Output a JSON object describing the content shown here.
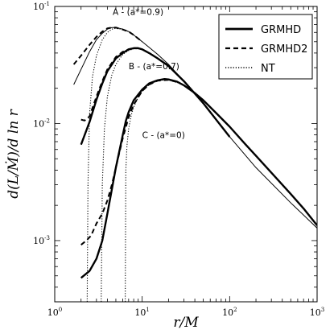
{
  "chart_data": {
    "type": "line",
    "xlabel": "r/M",
    "ylabel": "d(L/Ṁ)/d ln r",
    "x_scale": "log",
    "y_scale": "log",
    "xlim": [
      1,
      1000
    ],
    "ylim": [
      0.0003,
      0.1
    ],
    "x_ticks": [
      {
        "value": 1,
        "label": "10",
        "exp": "0"
      },
      {
        "value": 10,
        "label": "10",
        "exp": "1"
      },
      {
        "value": 100,
        "label": "10",
        "exp": "2"
      },
      {
        "value": 1000,
        "label": "10",
        "exp": "3"
      }
    ],
    "y_ticks": [
      {
        "value": 0.001,
        "label": "10",
        "exp": "-3"
      },
      {
        "value": 0.01,
        "label": "10",
        "exp": "-2"
      },
      {
        "value": 0.1,
        "label": "10",
        "exp": "-1"
      }
    ],
    "grid": false,
    "legend": {
      "position": "top-right",
      "entries": [
        {
          "name": "GRMHD",
          "style": "solid-thick"
        },
        {
          "name": "GRMHD2",
          "style": "dashed"
        },
        {
          "name": "NT",
          "style": "dotted"
        }
      ]
    },
    "annotations": [
      {
        "text": "A - (a*=0.9)",
        "x": 4.6,
        "y": 0.085
      },
      {
        "text": "B - (a*=0.7)",
        "x": 7.0,
        "y": 0.029
      },
      {
        "text": "C - (a*=0)",
        "x": 10.0,
        "y": 0.0075
      }
    ],
    "series": [
      {
        "group": "A",
        "style": "solid-thin",
        "x": [
          1.65,
          2.0,
          2.5,
          3.0,
          3.5,
          4.0,
          4.5,
          5.0,
          5.5,
          6.0,
          7.0,
          8.0,
          10,
          15,
          20,
          30,
          50,
          100,
          200,
          500,
          1000
        ],
        "y": [
          0.0215,
          0.029,
          0.041,
          0.052,
          0.059,
          0.064,
          0.066,
          0.066,
          0.065,
          0.064,
          0.061,
          0.057,
          0.05,
          0.039,
          0.032,
          0.023,
          0.0148,
          0.0077,
          0.0042,
          0.0021,
          0.00128
        ]
      },
      {
        "group": "A",
        "style": "dashed",
        "x": [
          1.65,
          2.0,
          2.5,
          3.0,
          3.5,
          4.0,
          4.5,
          5.0,
          6.0,
          7.0,
          8.0,
          10
        ],
        "y": [
          0.032,
          0.038,
          0.047,
          0.055,
          0.061,
          0.065,
          0.066,
          0.066,
          0.0635,
          0.061,
          0.057,
          0.05
        ]
      },
      {
        "group": "A",
        "style": "dotted",
        "x": [
          2.35,
          2.4,
          2.5,
          2.7,
          3.0,
          3.5,
          4.0,
          4.5,
          5.0,
          6.0,
          7.0,
          8.0,
          10
        ],
        "y": [
          0.0003,
          0.003,
          0.012,
          0.025,
          0.038,
          0.052,
          0.06,
          0.064,
          0.065,
          0.0635,
          0.061,
          0.057,
          0.05
        ]
      },
      {
        "group": "B",
        "style": "solid-thick",
        "x": [
          2.0,
          2.5,
          3.0,
          3.5,
          4.0,
          5.0,
          6.0,
          7.0,
          8.0,
          9.0,
          10,
          12,
          15,
          20,
          30,
          50,
          100
        ],
        "y": [
          0.0066,
          0.0103,
          0.016,
          0.022,
          0.028,
          0.036,
          0.04,
          0.043,
          0.044,
          0.044,
          0.043,
          0.04,
          0.036,
          0.031,
          0.023,
          0.0149,
          0.0077
        ]
      },
      {
        "group": "B",
        "style": "dashed",
        "x": [
          2.0,
          2.2,
          2.5,
          3.0,
          3.5,
          4.0,
          5.0,
          6.0,
          7.0,
          8.0,
          9.0,
          10,
          12,
          15
        ],
        "y": [
          0.0108,
          0.0106,
          0.0115,
          0.017,
          0.023,
          0.029,
          0.037,
          0.041,
          0.043,
          0.044,
          0.044,
          0.043,
          0.04,
          0.036
        ]
      },
      {
        "group": "B",
        "style": "dotted",
        "x": [
          3.4,
          3.5,
          3.7,
          4.0,
          4.5,
          5.0,
          6.0,
          7.0,
          8.0,
          9.0,
          10,
          12,
          15
        ],
        "y": [
          0.0003,
          0.003,
          0.009,
          0.017,
          0.026,
          0.032,
          0.039,
          0.042,
          0.0435,
          0.0435,
          0.043,
          0.04,
          0.036
        ]
      },
      {
        "group": "C",
        "style": "solid-thick",
        "x": [
          2.0,
          2.5,
          3.0,
          3.5,
          4.0,
          5.0,
          6.0,
          6.5,
          7.0,
          8.0,
          10,
          12,
          15,
          18,
          20,
          25,
          30,
          40,
          50,
          70,
          100,
          150,
          200,
          300,
          500,
          700,
          1000
        ],
        "y": [
          0.00048,
          0.00055,
          0.0007,
          0.001,
          0.0017,
          0.0042,
          0.008,
          0.0105,
          0.0125,
          0.0158,
          0.0195,
          0.022,
          0.0234,
          0.024,
          0.0238,
          0.0228,
          0.0212,
          0.0182,
          0.0158,
          0.0123,
          0.0094,
          0.0067,
          0.0053,
          0.0038,
          0.0025,
          0.00188,
          0.00135
        ]
      },
      {
        "group": "C",
        "style": "dashed",
        "x": [
          2.0,
          2.3,
          2.6,
          3.0,
          3.5,
          4.0,
          4.5,
          5.0,
          6.0,
          7.0,
          8.0,
          10,
          12,
          15,
          20,
          25
        ],
        "y": [
          0.00092,
          0.001,
          0.0011,
          0.0014,
          0.0017,
          0.0022,
          0.003,
          0.0042,
          0.0075,
          0.0113,
          0.0145,
          0.019,
          0.0215,
          0.0232,
          0.0236,
          0.0226
        ]
      },
      {
        "group": "C",
        "style": "dotted",
        "x": [
          6.4,
          6.5,
          6.7,
          7.0,
          7.5,
          8.0,
          9.0,
          10,
          12,
          15,
          18,
          20,
          25,
          30
        ],
        "y": [
          0.0003,
          0.004,
          0.0065,
          0.009,
          0.0118,
          0.0138,
          0.0168,
          0.0188,
          0.0214,
          0.0232,
          0.0236,
          0.0235,
          0.0225,
          0.021
        ]
      }
    ]
  }
}
